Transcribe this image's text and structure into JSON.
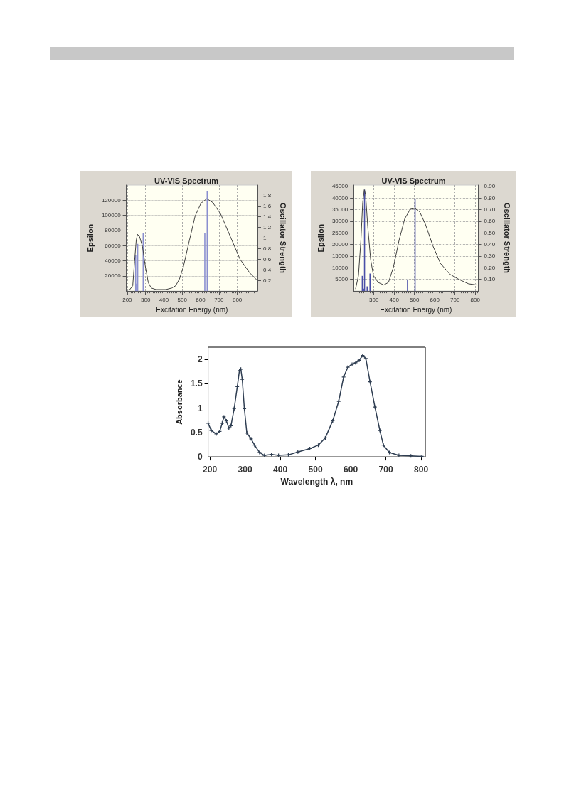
{
  "chart_data": [
    {
      "type": "line",
      "title": "UV-VIS Spectrum",
      "xlabel": "Excitation Energy (nm)",
      "ylabel": "Epsilon",
      "y2label": "Oscillator Strength",
      "xlim": [
        195,
        910
      ],
      "xticks": [
        200,
        300,
        400,
        500,
        600,
        700,
        800
      ],
      "ylim": [
        0,
        140000
      ],
      "yticks": [
        20000,
        40000,
        60000,
        80000,
        100000,
        120000
      ],
      "y2lim": [
        0,
        2.0
      ],
      "y2ticks": [
        0.2,
        0.4,
        0.6,
        0.8,
        1.0,
        1.2,
        1.4,
        1.6,
        1.8
      ],
      "grid": true,
      "marker": "none",
      "series": [
        {
          "type": "line",
          "color": "#404040",
          "x": [
            196,
            214,
            230,
            240,
            249,
            256,
            267,
            283,
            299,
            315,
            331,
            357,
            411,
            443,
            464,
            485,
            506,
            538,
            570,
            602,
            634,
            666,
            709,
            762,
            815,
            868,
            905
          ],
          "values": [
            1000,
            2000,
            7000,
            39000,
            67000,
            75000,
            72000,
            59000,
            32000,
            11000,
            4000,
            2000,
            2000,
            4000,
            7000,
            16000,
            32000,
            66000,
            99000,
            116000,
            122000,
            117000,
            102000,
            72000,
            42000,
            24000,
            15000
          ]
        },
        {
          "type": "bar",
          "axis": "y2",
          "color": "#8a8fd0",
          "x": [
            246,
            251,
            257,
            287,
            623,
            636
          ],
          "values": [
            0.68,
            0.14,
            0.89,
            1.1,
            1.1,
            1.88
          ]
        }
      ]
    },
    {
      "type": "line",
      "title": "UV-VIS Spectrum",
      "xlabel": "Excitation Energy (nm)",
      "ylabel": "Epsilon",
      "y2label": "Oscillator Strength",
      "xlim": [
        200,
        815
      ],
      "xticks": [
        300,
        400,
        500,
        600,
        700,
        800
      ],
      "ylim": [
        0,
        45500
      ],
      "yticks": [
        5000,
        10000,
        15000,
        20000,
        25000,
        30000,
        35000,
        40000,
        45000
      ],
      "y2lim": [
        0,
        0.91
      ],
      "y2ticks": [
        {
          "value": 0.1,
          "label": "0.10"
        },
        {
          "value": 0.2,
          "label": "0.20"
        },
        {
          "value": 0.3,
          "label": "0.30"
        },
        {
          "value": 0.4,
          "label": "0.40"
        },
        {
          "value": 0.5,
          "label": "0.50"
        },
        {
          "value": 0.6,
          "label": "0.60"
        },
        {
          "value": 0.7,
          "label": "0.70"
        },
        {
          "value": 0.8,
          "label": "0.80"
        },
        {
          "value": 0.9,
          "label": "0.90"
        }
      ],
      "grid": true,
      "marker": "none",
      "series": [
        {
          "type": "line",
          "color": "#404040",
          "x": [
            210,
            224,
            236,
            245,
            253,
            259,
            270,
            284,
            298,
            321,
            349,
            372,
            396,
            424,
            452,
            479,
            502,
            526,
            554,
            591,
            628,
            675,
            721,
            767,
            809
          ],
          "values": [
            1000,
            6600,
            21700,
            38000,
            43500,
            41500,
            27600,
            13600,
            6600,
            3700,
            2600,
            3700,
            10100,
            21700,
            31000,
            35100,
            35500,
            34000,
            28700,
            19400,
            11900,
            7200,
            4900,
            3100,
            2600
          ]
        },
        {
          "type": "bar",
          "axis": "y2",
          "color": "#4a4fa8",
          "x": [
            243,
            249,
            254,
            267,
            281,
            466,
            503
          ],
          "values": [
            0.13,
            0.02,
            0.87,
            0.04,
            0.15,
            0.1,
            0.79
          ]
        }
      ]
    },
    {
      "type": "line",
      "xlabel": "Wavelength λ, nm",
      "ylabel": "Absorbance",
      "xlim": [
        195,
        812
      ],
      "xticks": [
        200,
        300,
        400,
        500,
        600,
        700,
        800
      ],
      "ylim": [
        0,
        2.25
      ],
      "yticks": [
        0,
        0.5,
        1,
        1.5,
        2
      ],
      "marker": "cross",
      "series": [
        {
          "color": "#2f3e52",
          "x": [
            195,
            204,
            218,
            228,
            235,
            240,
            247,
            254,
            260,
            269,
            278,
            284,
            288,
            292,
            298,
            305,
            317,
            327,
            341,
            355,
            375,
            395,
            423,
            450,
            484,
            508,
            528,
            549,
            566,
            580,
            592,
            604,
            614,
            624,
            634,
            643,
            655,
            669,
            683,
            693,
            710,
            737,
            771,
            802
          ],
          "values": [
            0.69,
            0.54,
            0.47,
            0.52,
            0.69,
            0.82,
            0.74,
            0.59,
            0.64,
            0.99,
            1.44,
            1.77,
            1.8,
            1.59,
            0.99,
            0.49,
            0.37,
            0.24,
            0.09,
            0.03,
            0.05,
            0.03,
            0.04,
            0.1,
            0.17,
            0.24,
            0.39,
            0.74,
            1.14,
            1.64,
            1.84,
            1.9,
            1.93,
            1.98,
            2.08,
            2.02,
            1.54,
            1.02,
            0.54,
            0.24,
            0.09,
            0.03,
            0.02,
            0.01
          ]
        }
      ]
    }
  ]
}
